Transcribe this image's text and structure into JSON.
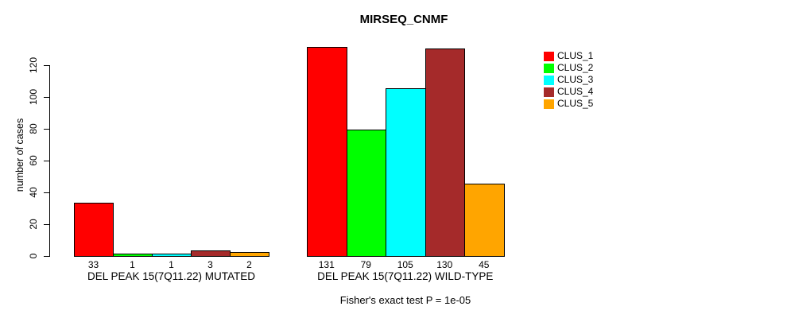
{
  "chart_data": {
    "type": "bar",
    "title": "MIRSEQ_CNMF",
    "ylabel": "number of cases",
    "xlabel": "",
    "yticks": [
      0,
      20,
      40,
      60,
      80,
      100,
      120
    ],
    "ylim": [
      0,
      135
    ],
    "grid": false,
    "legend_position": "right",
    "clusters": [
      {
        "label": "CLUS_1",
        "color": "#FF0000"
      },
      {
        "label": "CLUS_2",
        "color": "#00FF00"
      },
      {
        "label": "CLUS_3",
        "color": "#00FFFF"
      },
      {
        "label": "CLUS_4",
        "color": "#A52A2A"
      },
      {
        "label": "CLUS_5",
        "color": "#FFA500"
      }
    ],
    "groups": [
      {
        "label": "DEL PEAK 15(7Q11.22) MUTATED",
        "values": [
          33,
          1,
          1,
          3,
          2
        ]
      },
      {
        "label": "DEL PEAK 15(7Q11.22) WILD-TYPE",
        "values": [
          131,
          79,
          105,
          130,
          45
        ]
      }
    ],
    "annotation": "Fisher's exact test P = 1e-05",
    "axis_color": "#000000",
    "background": "#FFFFFF"
  }
}
